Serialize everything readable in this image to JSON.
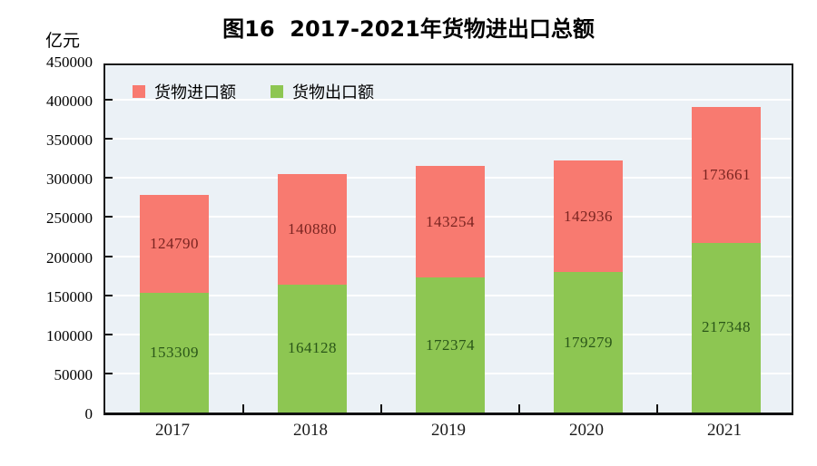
{
  "chart": {
    "title": "图16  2017-2021年货物进出口总额",
    "unit_label": "亿元"
  },
  "chart_data": {
    "type": "bar",
    "stacked": true,
    "title": "图16  2017-2021年货物进出口总额",
    "xlabel": "",
    "ylabel": "亿元",
    "categories": [
      "2017",
      "2018",
      "2019",
      "2020",
      "2021"
    ],
    "series": [
      {
        "name": "货物出口额",
        "role": "export",
        "color": "#8dc652",
        "label_color": "#2a5618",
        "values": [
          153309,
          164128,
          172374,
          179279,
          217348
        ]
      },
      {
        "name": "货物进口额",
        "role": "import",
        "color": "#f87a70",
        "label_color": "#7a2420",
        "values": [
          124790,
          140880,
          143254,
          142936,
          173661
        ]
      }
    ],
    "legend": {
      "position": "top-left-inside",
      "items": [
        {
          "label": "货物进口额",
          "color": "#f87a70"
        },
        {
          "label": "货物出口额",
          "color": "#8dc652"
        }
      ]
    },
    "ylim": [
      0,
      450000
    ],
    "ytick_step": 50000,
    "yticks": [
      0,
      50000,
      100000,
      150000,
      200000,
      250000,
      300000,
      350000,
      400000,
      450000
    ],
    "grid": "horizontal-white",
    "plot_bg": "#ebf1f6",
    "axis_color": "#1b1b1b"
  }
}
